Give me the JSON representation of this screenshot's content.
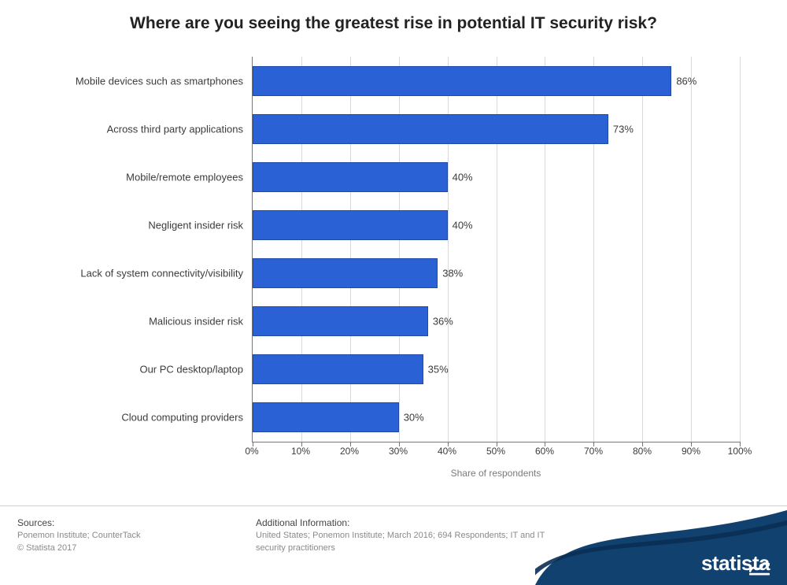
{
  "title": "Where are you seeing the greatest rise in potential IT security risk?",
  "chart": {
    "type": "bar-horizontal",
    "x_axis_title": "Share of respondents",
    "x_min": 0,
    "x_max": 100,
    "x_tick_step": 10,
    "x_tick_suffix": "%",
    "bar_color": "#2a62d6",
    "bar_border_color": "#1f4aa8",
    "grid_color": "#d9d9d9",
    "axis_color": "#777777",
    "background_color": "#ffffff",
    "label_fontsize": 13,
    "tick_fontsize": 12,
    "categories": [
      "Mobile devices such as smartphones",
      "Across third party applications",
      "Mobile/remote employees",
      "Negligent insider risk",
      "Lack of system connectivity/visibility",
      "Malicious insider risk",
      "Our PC desktop/laptop",
      "Cloud computing providers"
    ],
    "values": [
      86,
      73,
      40,
      40,
      38,
      36,
      35,
      30
    ],
    "value_suffix": "%"
  },
  "footer": {
    "sources_heading": "Sources:",
    "sources_body": "Ponemon Institute; CounterTack",
    "copyright": "© Statista 2017",
    "additional_heading": "Additional Information:",
    "additional_body": "United States; Ponemon Institute; March 2016; 694 Respondents; IT and IT security practitioners",
    "brand": "statista",
    "brand_bg_color": "#10416f"
  }
}
